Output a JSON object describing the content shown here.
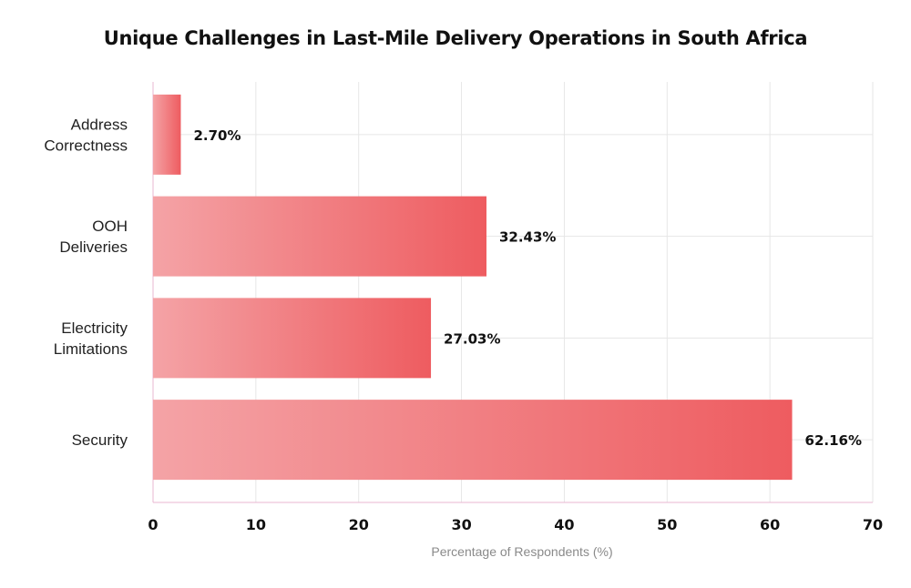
{
  "chart_data": {
    "type": "bar",
    "orientation": "horizontal",
    "title": "Unique Challenges in Last-Mile Delivery Operations in South Africa",
    "categories": [
      [
        "Address",
        "Correctness"
      ],
      [
        "OOH",
        "Deliveries"
      ],
      [
        "Electricity",
        "Limitations"
      ],
      [
        "Security"
      ]
    ],
    "values": [
      2.7,
      32.43,
      27.03,
      62.16
    ],
    "value_labels": [
      "2.70%",
      "32.43%",
      "27.03%",
      "62.16%"
    ],
    "xlabel": "Percentage of Respondents (%)",
    "ylabel": "",
    "xlim": [
      0,
      70
    ],
    "xticks": [
      0,
      10,
      20,
      30,
      40,
      50,
      60,
      70
    ],
    "grid": true,
    "legend": "none",
    "colors": {
      "bar_light": "#f4a3a6",
      "bar_dark": "#ee5c60",
      "grid": "#e6e6e6",
      "axis": "#e8b7d2"
    }
  }
}
